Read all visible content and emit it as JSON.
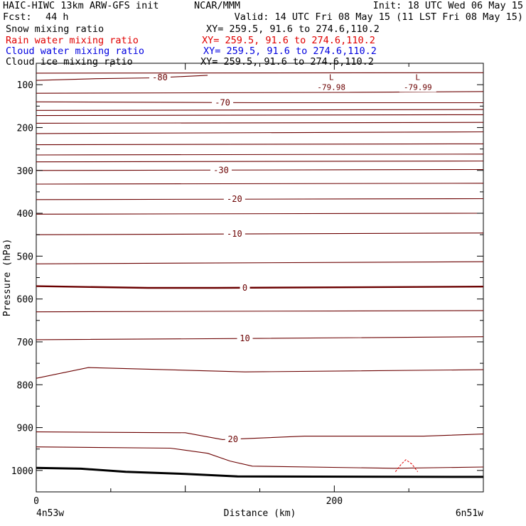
{
  "header": {
    "title": "HAIC-HIWC 13km ARW-GFS init",
    "center": "NCAR/MMM",
    "init": "Init: 18 UTC Wed 06 May 15",
    "fcst_label": "Fcst:",
    "fcst_value": "44 h",
    "valid": "Valid: 14 UTC Fri 08 May 15 (11 LST Fri 08 May 15)",
    "fields": [
      {
        "name": "Snow mixing ratio",
        "xy": "XY= 259.5, 91.6 to 274.6,110.2",
        "color": "#000000"
      },
      {
        "name": "Rain water mixing ratio",
        "xy": "XY= 259.5, 91.6 to 274.6,110.2",
        "color": "#e00000"
      },
      {
        "name": "Cloud water mixing ratio",
        "xy": "XY= 259.5, 91.6 to 274.6,110.2",
        "color": "#0000e0"
      },
      {
        "name": "Cloud ice mixing ratio",
        "xy": "XY= 259.5, 91.6 to 274.6,110.2",
        "color": "#000000"
      }
    ]
  },
  "chart_data": {
    "type": "line",
    "xlabel": "Distance (km)",
    "ylabel": "Pressure (hPa)",
    "xlim": [
      0,
      300
    ],
    "ylim": [
      1050,
      50
    ],
    "x_ticks": [
      0,
      200
    ],
    "y_ticks": [
      100,
      200,
      300,
      400,
      500,
      600,
      700,
      800,
      900,
      1000
    ],
    "left_endpoint_label": "4n53w",
    "right_endpoint_label": "6n51w",
    "contour_color": "#6b0000",
    "isotherms": [
      {
        "label": "-80",
        "label_x": 83,
        "points": [
          [
            0,
            90
          ],
          [
            40,
            86
          ],
          [
            80,
            84
          ],
          [
            115,
            78
          ]
        ]
      },
      {
        "label": "",
        "label_x": null,
        "points": [
          [
            0,
            73
          ],
          [
            300,
            72
          ]
        ]
      },
      {
        "label": "",
        "label_x": null,
        "points": [
          [
            0,
            120
          ],
          [
            200,
            118
          ],
          [
            300,
            116
          ]
        ]
      },
      {
        "label": "-70",
        "label_x": 125,
        "points": [
          [
            0,
            140
          ],
          [
            150,
            142
          ],
          [
            300,
            142
          ]
        ]
      },
      {
        "label": "",
        "label_x": null,
        "points": [
          [
            0,
            160
          ],
          [
            300,
            158
          ]
        ]
      },
      {
        "label": "",
        "label_x": null,
        "points": [
          [
            0,
            172
          ],
          [
            300,
            170
          ]
        ]
      },
      {
        "label": "",
        "label_x": null,
        "points": [
          [
            0,
            190
          ],
          [
            300,
            188
          ]
        ]
      },
      {
        "label": "",
        "label_x": null,
        "points": [
          [
            0,
            214
          ],
          [
            300,
            210
          ]
        ]
      },
      {
        "label": "",
        "label_x": null,
        "points": [
          [
            0,
            240
          ],
          [
            300,
            238
          ]
        ]
      },
      {
        "label": "",
        "label_x": null,
        "points": [
          [
            0,
            264
          ],
          [
            300,
            262
          ]
        ]
      },
      {
        "label": "",
        "label_x": null,
        "points": [
          [
            0,
            280
          ],
          [
            300,
            278
          ]
        ]
      },
      {
        "label": "-30",
        "label_x": 124,
        "points": [
          [
            0,
            300
          ],
          [
            300,
            298
          ]
        ]
      },
      {
        "label": "",
        "label_x": null,
        "points": [
          [
            0,
            332
          ],
          [
            300,
            330
          ]
        ]
      },
      {
        "label": "-20",
        "label_x": 133,
        "points": [
          [
            0,
            368
          ],
          [
            300,
            366
          ]
        ]
      },
      {
        "label": "",
        "label_x": null,
        "points": [
          [
            0,
            402
          ],
          [
            300,
            400
          ]
        ]
      },
      {
        "label": "-10",
        "label_x": 133,
        "points": [
          [
            0,
            450
          ],
          [
            300,
            446
          ]
        ]
      },
      {
        "label": "",
        "label_x": null,
        "points": [
          [
            0,
            518
          ],
          [
            300,
            513
          ]
        ]
      },
      {
        "label": "0",
        "label_x": 140,
        "bold": true,
        "points": [
          [
            0,
            570
          ],
          [
            75,
            574
          ],
          [
            120,
            574
          ],
          [
            300,
            571
          ]
        ]
      },
      {
        "label": "",
        "label_x": null,
        "points": [
          [
            0,
            630
          ],
          [
            300,
            627
          ]
        ]
      },
      {
        "label": "10",
        "label_x": 140,
        "points": [
          [
            0,
            695
          ],
          [
            150,
            692
          ],
          [
            300,
            688
          ]
        ]
      },
      {
        "label": "",
        "label_x": null,
        "points": [
          [
            0,
            785
          ],
          [
            35,
            760
          ],
          [
            140,
            770
          ],
          [
            300,
            765
          ]
        ]
      },
      {
        "label": "20",
        "label_x": 132,
        "points": [
          [
            0,
            910
          ],
          [
            100,
            912
          ],
          [
            125,
            928
          ],
          [
            180,
            920
          ],
          [
            260,
            920
          ],
          [
            300,
            915
          ]
        ]
      },
      {
        "label": "",
        "label_x": null,
        "points": [
          [
            0,
            945
          ],
          [
            90,
            948
          ],
          [
            115,
            960
          ],
          [
            130,
            978
          ],
          [
            145,
            990
          ],
          [
            240,
            995
          ],
          [
            300,
            992
          ]
        ]
      }
    ],
    "lows": [
      {
        "label": "L",
        "value": "-79.98",
        "x": 198,
        "p": 92
      },
      {
        "label": "L",
        "value": "-79.99",
        "x": 256,
        "p": 92
      }
    ],
    "terrain": {
      "points": [
        [
          0,
          994
        ],
        [
          30,
          996
        ],
        [
          60,
          1003
        ],
        [
          100,
          1008
        ],
        [
          135,
          1014
        ],
        [
          300,
          1015
        ]
      ]
    },
    "rain_contour": {
      "color": "#e00000",
      "points": [
        [
          241,
          1003
        ],
        [
          245,
          985
        ],
        [
          248,
          975
        ],
        [
          252,
          985
        ],
        [
          256,
          1003
        ]
      ]
    }
  }
}
